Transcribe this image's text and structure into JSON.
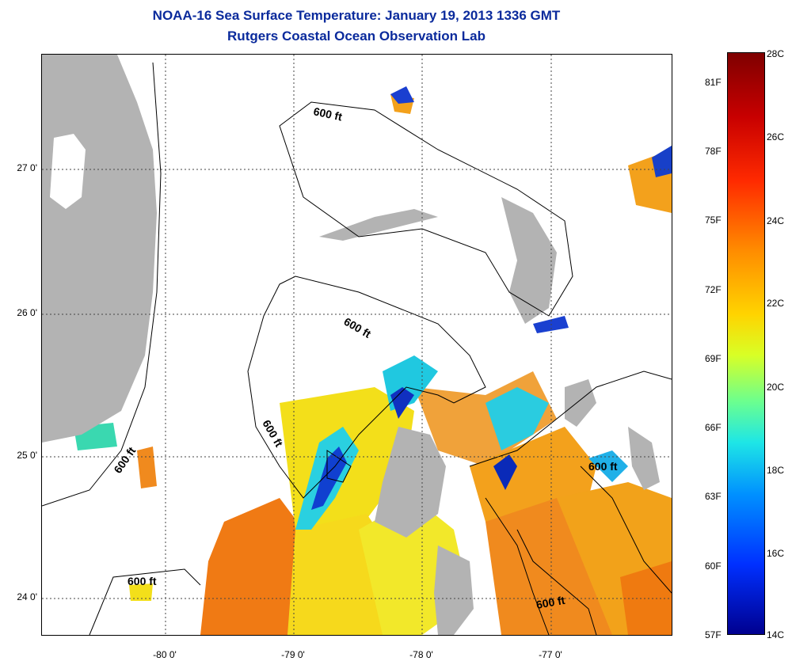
{
  "title": {
    "line1": "NOAA-16 Sea Surface Temperature:  January 19, 2013 1336 GMT",
    "line2": "Rutgers Coastal Ocean Observation Lab"
  },
  "map": {
    "lat_labels": [
      "27 0'",
      "26 0'",
      "25 0'",
      "24 0'"
    ],
    "lon_labels": [
      "-80 0'",
      "-79 0'",
      "-78 0'",
      "-77 0'"
    ],
    "contour_labels": [
      "600 ft",
      "600 ft",
      "600 ft",
      "600 ft",
      "600 ft",
      "600 ft"
    ],
    "land_color": "#b3b3b3",
    "contour_color": "#000000"
  },
  "colorbar": {
    "celsius_labels": [
      "28C",
      "26C",
      "24C",
      "22C",
      "20C",
      "18C",
      "16C",
      "14C"
    ],
    "fahrenheit_labels": [
      "81F",
      "78F",
      "75F",
      "72F",
      "69F",
      "66F",
      "63F",
      "60F",
      "57F"
    ],
    "top_color": "#7f0000",
    "bottom_color": "#00008f"
  }
}
